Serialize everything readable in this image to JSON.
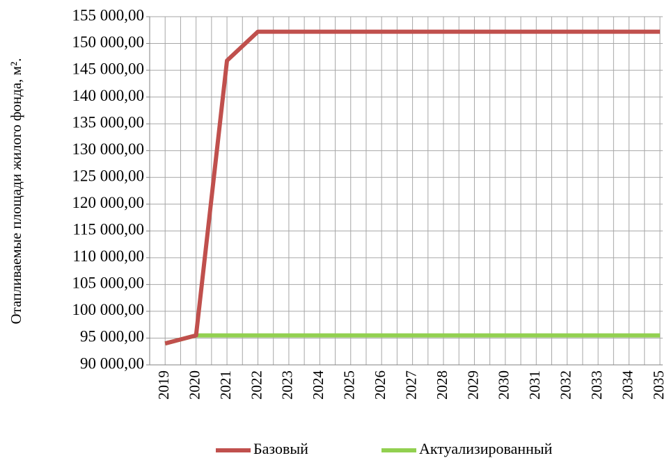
{
  "chart_data": {
    "type": "line",
    "y_label": "Отапливаемые площади жилого фонда, м².",
    "categories": [
      "2019",
      "2020",
      "2021",
      "2022",
      "2023",
      "2024",
      "2025",
      "2026",
      "2027",
      "2028",
      "2029",
      "2030",
      "2031",
      "2032",
      "2033",
      "2034",
      "2035"
    ],
    "series": [
      {
        "name": "Базовый",
        "color": "#c0504d",
        "values": [
          94000,
          95500,
          146800,
          152200,
          152200,
          152200,
          152200,
          152200,
          152200,
          152200,
          152200,
          152200,
          152200,
          152200,
          152200,
          152200,
          152200
        ]
      },
      {
        "name": "Актуализированный",
        "color": "#92d050",
        "values": [
          94000,
          95500,
          95500,
          95500,
          95500,
          95500,
          95500,
          95500,
          95500,
          95500,
          95500,
          95500,
          95500,
          95500,
          95500,
          95500,
          95500
        ]
      }
    ],
    "ylim": [
      90000,
      155000
    ],
    "yticks": [
      {
        "value": 90000,
        "label": "90 000,00"
      },
      {
        "value": 95000,
        "label": "95 000,00"
      },
      {
        "value": 100000,
        "label": "100 000,00"
      },
      {
        "value": 105000,
        "label": "105 000,00"
      },
      {
        "value": 110000,
        "label": "110 000,00"
      },
      {
        "value": 115000,
        "label": "115 000,00"
      },
      {
        "value": 120000,
        "label": "120 000,00"
      },
      {
        "value": 125000,
        "label": "125 000,00"
      },
      {
        "value": 130000,
        "label": "130 000,00"
      },
      {
        "value": 135000,
        "label": "135 000,00"
      },
      {
        "value": 140000,
        "label": "140 000,00"
      },
      {
        "value": 145000,
        "label": "145 000,00"
      },
      {
        "value": 150000,
        "label": "150 000,00"
      },
      {
        "value": 155000,
        "label": "155 000,00"
      }
    ],
    "grid": true,
    "legend": "bottom"
  }
}
